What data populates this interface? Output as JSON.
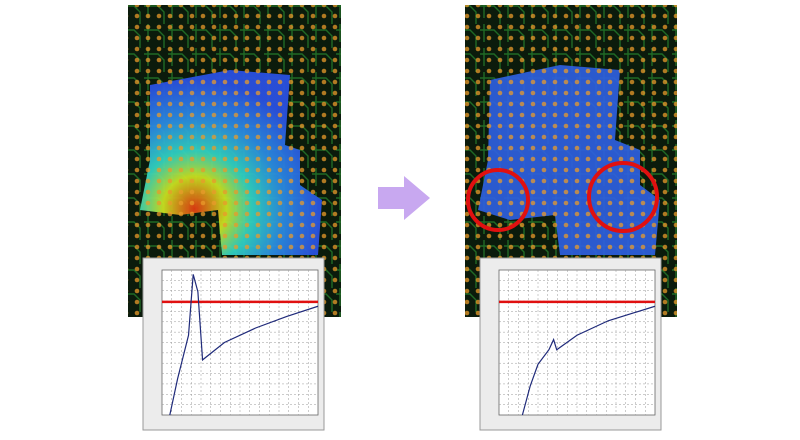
{
  "chart_data": [
    {
      "type": "line",
      "xlim": [
        0,
        100
      ],
      "ylim": [
        0,
        100
      ],
      "threshold": 78,
      "threshold_color": "#e01010",
      "series": [
        {
          "color": "#1f2a7a",
          "x": [
            5,
            10,
            17,
            20,
            23,
            26,
            40,
            60,
            80,
            100
          ],
          "values": [
            0,
            25,
            55,
            97,
            85,
            38,
            50,
            60,
            68,
            75
          ]
        }
      ]
    },
    {
      "type": "line",
      "xlim": [
        0,
        100
      ],
      "ylim": [
        0,
        100
      ],
      "threshold": 78,
      "threshold_color": "#e01010",
      "series": [
        {
          "color": "#1f2a7a",
          "x": [
            15,
            20,
            25,
            32,
            35,
            37,
            50,
            70,
            100
          ],
          "values": [
            0,
            20,
            35,
            45,
            52,
            45,
            55,
            65,
            75
          ]
        }
      ]
    }
  ]
}
